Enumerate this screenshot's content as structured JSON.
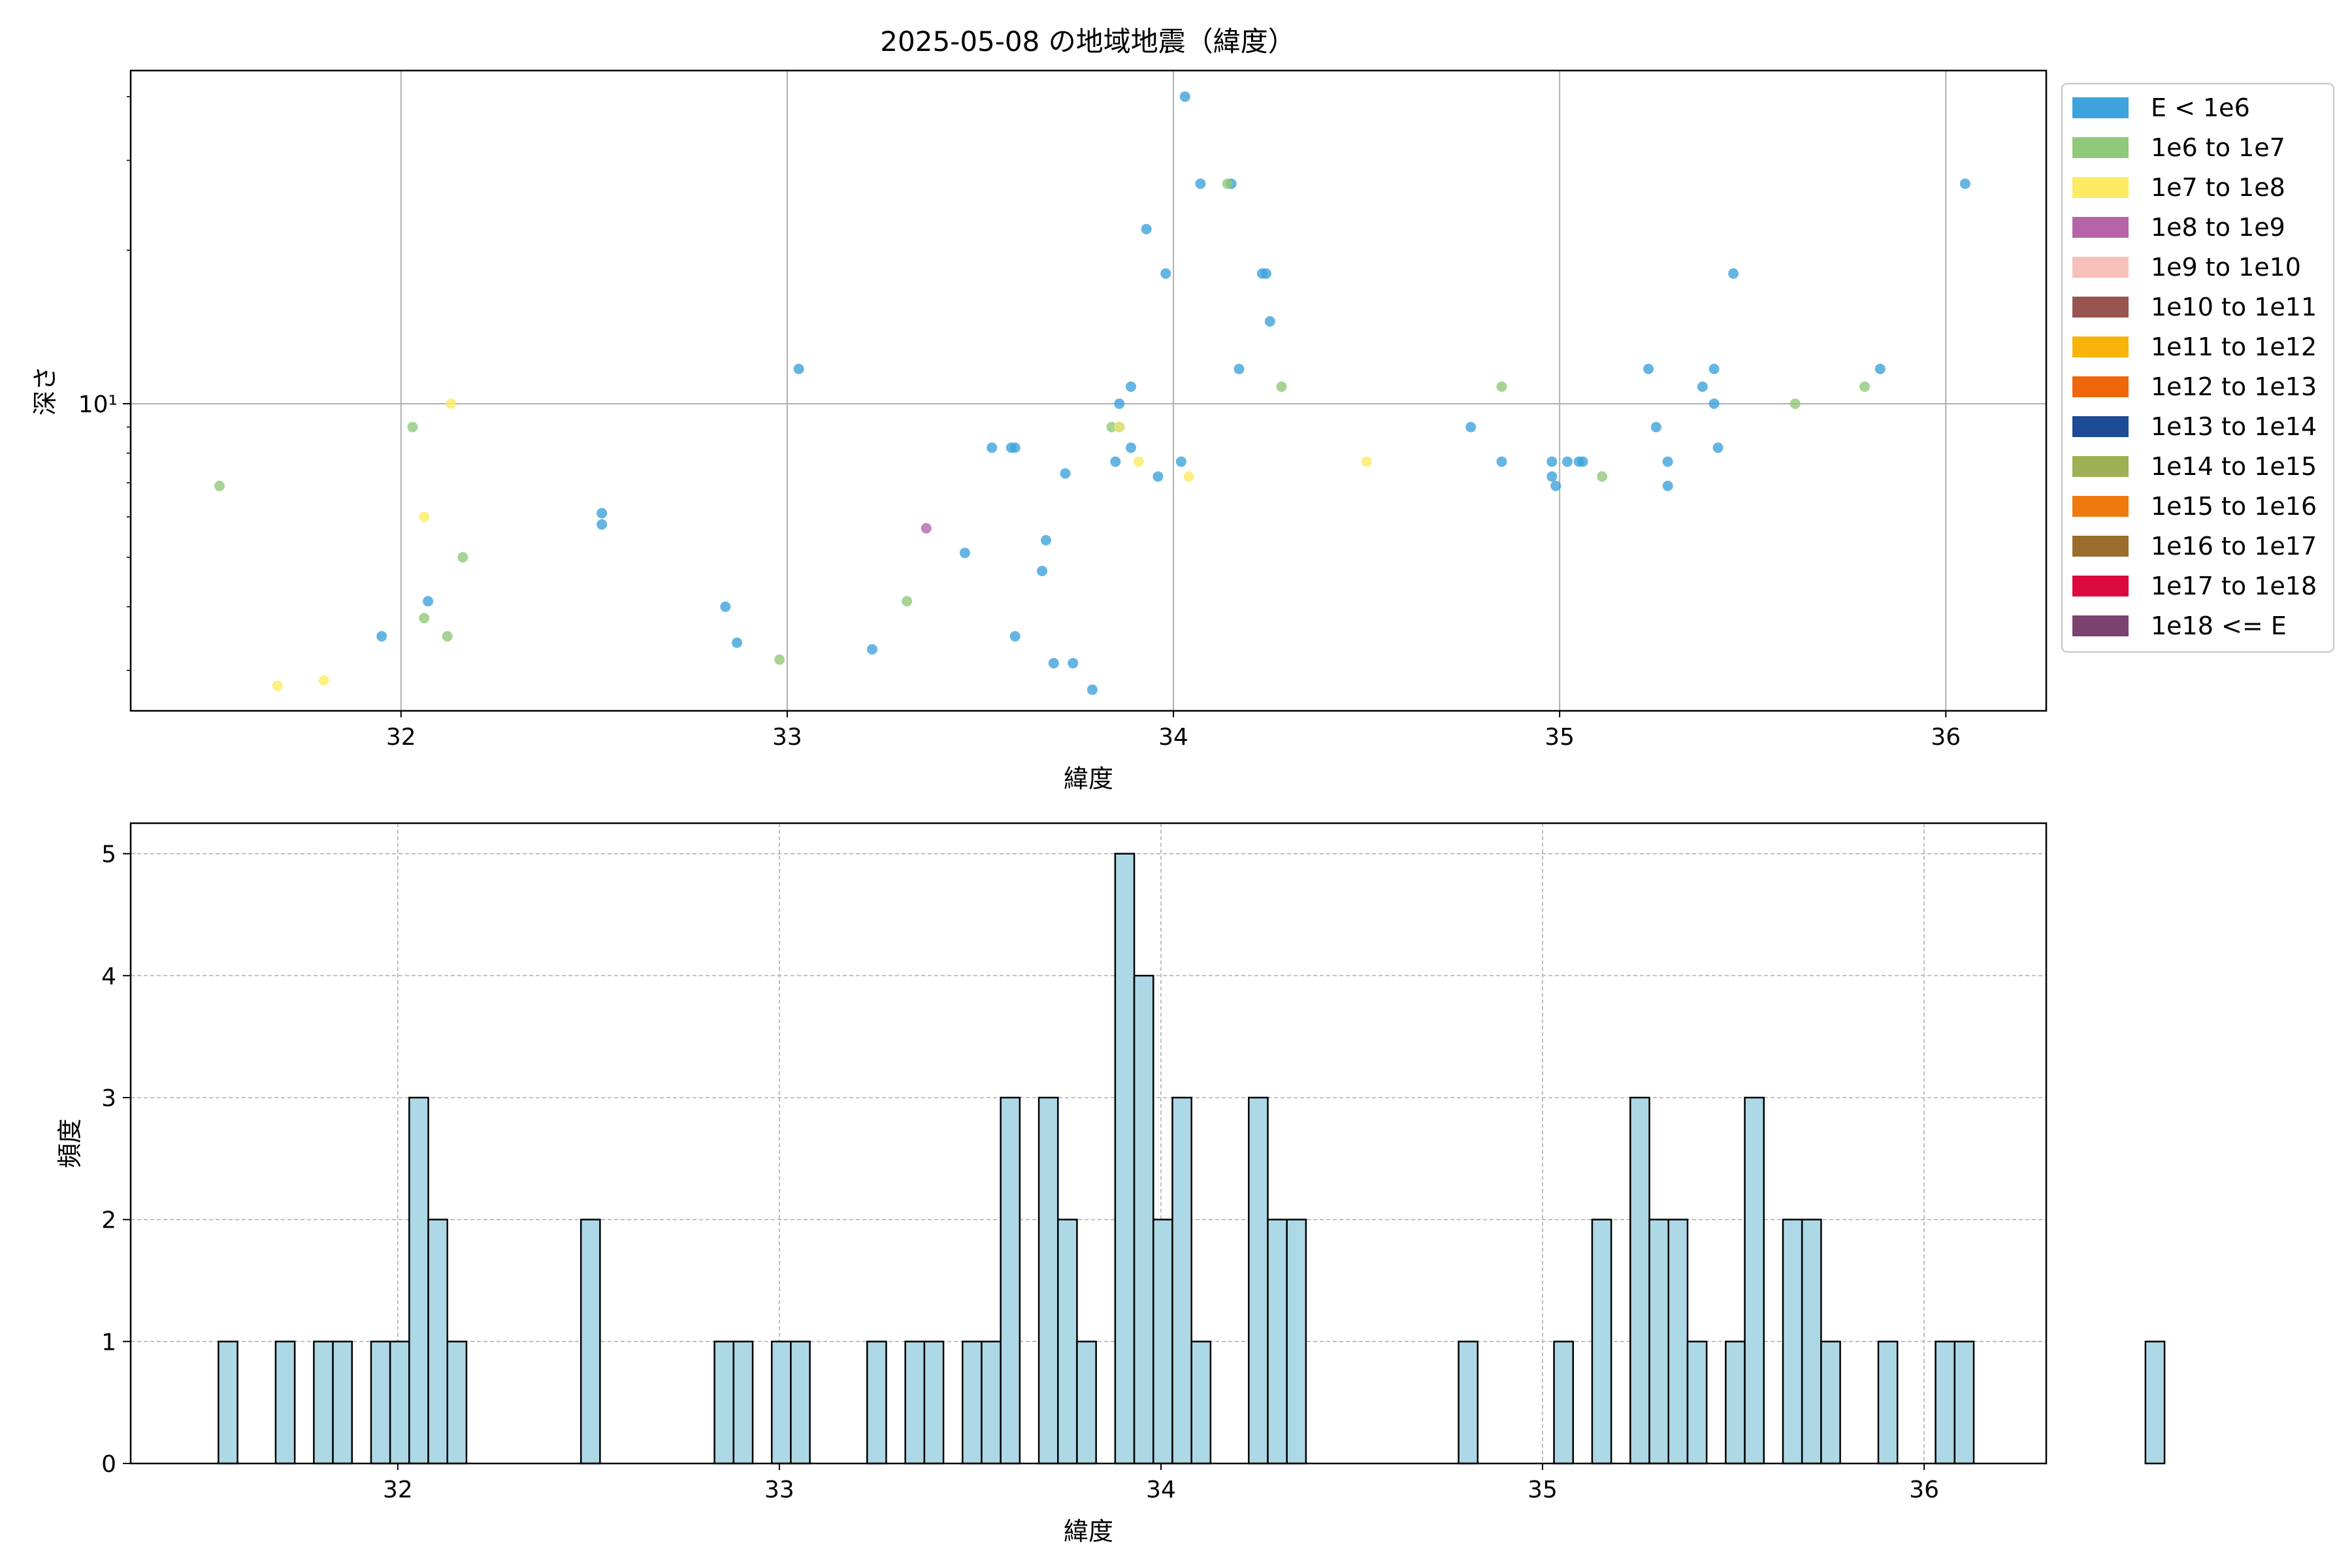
{
  "chart_data": [
    {
      "type": "scatter",
      "title": "2025-05-08 の地域地震（緯度）",
      "xlabel": "緯度",
      "ylabel": "深さ",
      "xlim": [
        31.3,
        36.26
      ],
      "ylim": [
        2.5,
        45
      ],
      "yscale": "log",
      "xticks": [
        32,
        33,
        34,
        35,
        36
      ],
      "xtick_labels": [
        "32",
        "33",
        "34",
        "35",
        "36"
      ],
      "yticks": [
        10
      ],
      "ytick_labels": [
        "10¹"
      ],
      "grid": true,
      "legend_position": "outside-right",
      "legend": [
        {
          "label": "E < 1e6",
          "color": "#3ea2dc"
        },
        {
          "label": "1e6 to 1e7",
          "color": "#91c97a"
        },
        {
          "label": "1e7 to 1e8",
          "color": "#fdeb63"
        },
        {
          "label": "1e8 to 1e9",
          "color": "#b565a7"
        },
        {
          "label": "1e9 to 1e10",
          "color": "#f7c0bb"
        },
        {
          "label": "1e10 to 1e11",
          "color": "#985550"
        },
        {
          "label": "1e11 to 1e12",
          "color": "#f7b307"
        },
        {
          "label": "1e12 to 1e13",
          "color": "#ee6609"
        },
        {
          "label": "1e13 to 1e14",
          "color": "#1e4b95"
        },
        {
          "label": "1e14 to 1e15",
          "color": "#9eb054"
        },
        {
          "label": "1e15 to 1e16",
          "color": "#ee7a0f"
        },
        {
          "label": "1e16 to 1e17",
          "color": "#9a6d2c"
        },
        {
          "label": "1e17 to 1e18",
          "color": "#dc0840"
        },
        {
          "label": "1e18 <= E",
          "color": "#7b4270"
        }
      ],
      "series": [
        {
          "name": "E < 1e6",
          "points": [
            [
              31.95,
              3.5
            ],
            [
              32.07,
              4.1
            ],
            [
              32.52,
              6.1
            ],
            [
              32.52,
              5.8
            ],
            [
              32.84,
              4.0
            ],
            [
              32.87,
              3.4
            ],
            [
              33.03,
              11.7
            ],
            [
              33.22,
              3.3
            ],
            [
              33.46,
              5.1
            ],
            [
              33.53,
              8.2
            ],
            [
              33.58,
              8.2
            ],
            [
              33.59,
              8.2
            ],
            [
              33.59,
              3.5
            ],
            [
              33.66,
              4.7
            ],
            [
              33.67,
              5.4
            ],
            [
              33.69,
              3.1
            ],
            [
              33.72,
              7.3
            ],
            [
              33.74,
              3.1
            ],
            [
              33.79,
              2.75
            ],
            [
              33.85,
              7.7
            ],
            [
              33.86,
              9.0
            ],
            [
              33.86,
              10.0
            ],
            [
              33.89,
              8.2
            ],
            [
              33.89,
              10.8
            ],
            [
              33.93,
              22.0
            ],
            [
              33.96,
              7.2
            ],
            [
              33.98,
              18.0
            ],
            [
              34.02,
              7.7
            ],
            [
              34.03,
              40.0
            ],
            [
              34.07,
              27.0
            ],
            [
              34.15,
              27.0
            ],
            [
              34.17,
              11.7
            ],
            [
              34.23,
              18.0
            ],
            [
              34.24,
              18.0
            ],
            [
              34.25,
              14.5
            ],
            [
              34.77,
              9.0
            ],
            [
              34.85,
              7.7
            ],
            [
              34.98,
              7.7
            ],
            [
              34.98,
              7.2
            ],
            [
              34.99,
              6.9
            ],
            [
              35.02,
              7.7
            ],
            [
              35.05,
              7.7
            ],
            [
              35.06,
              7.7
            ],
            [
              35.23,
              11.7
            ],
            [
              35.25,
              9.0
            ],
            [
              35.28,
              7.7
            ],
            [
              35.28,
              6.9
            ],
            [
              35.37,
              10.8
            ],
            [
              35.4,
              11.7
            ],
            [
              35.4,
              10.0
            ],
            [
              35.41,
              8.2
            ],
            [
              35.45,
              18.0
            ],
            [
              35.83,
              11.7
            ],
            [
              36.05,
              27.0
            ]
          ]
        },
        {
          "name": "1e6 to 1e7",
          "points": [
            [
              31.53,
              6.9
            ],
            [
              32.03,
              9.0
            ],
            [
              32.06,
              3.8
            ],
            [
              32.12,
              3.5
            ],
            [
              32.16,
              5.0
            ],
            [
              32.98,
              3.15
            ],
            [
              33.31,
              4.1
            ],
            [
              33.84,
              9.0
            ],
            [
              34.14,
              27.0
            ],
            [
              34.28,
              10.8
            ],
            [
              34.85,
              10.8
            ],
            [
              35.11,
              7.2
            ],
            [
              35.61,
              10.0
            ],
            [
              35.79,
              10.8
            ]
          ]
        },
        {
          "name": "1e7 to 1e8",
          "points": [
            [
              31.68,
              2.8
            ],
            [
              31.8,
              2.87
            ],
            [
              32.06,
              6.0
            ],
            [
              32.13,
              10.0
            ],
            [
              33.86,
              9.0
            ],
            [
              33.91,
              7.7
            ],
            [
              34.04,
              7.2
            ],
            [
              34.5,
              7.7
            ]
          ]
        },
        {
          "name": "1e8 to 1e9",
          "points": [
            [
              33.36,
              5.7
            ]
          ]
        }
      ]
    },
    {
      "type": "bar",
      "subtype": "histogram",
      "xlabel": "緯度",
      "ylabel": "頻度",
      "xlim": [
        31.3,
        36.32
      ],
      "ylim": [
        0,
        5.25
      ],
      "xticks": [
        32,
        33,
        34,
        35,
        36
      ],
      "xtick_labels": [
        "32",
        "33",
        "34",
        "35",
        "36"
      ],
      "yticks": [
        0,
        1,
        2,
        3,
        4,
        5
      ],
      "ytick_labels": [
        "0",
        "1",
        "2",
        "3",
        "4",
        "5"
      ],
      "grid": true,
      "bar_color": "#add8e6",
      "edge_color": "#000000",
      "bin_start": 31.53,
      "bin_width": 0.05,
      "values": [
        1,
        0,
        0,
        1,
        0,
        1,
        1,
        0,
        1,
        1,
        3,
        2,
        1,
        0,
        0,
        0,
        0,
        0,
        0,
        2,
        0,
        0,
        0,
        0,
        0,
        0,
        1,
        1,
        0,
        1,
        1,
        0,
        0,
        0,
        1,
        0,
        1,
        1,
        0,
        1,
        1,
        3,
        0,
        3,
        2,
        1,
        0,
        5,
        4,
        2,
        3,
        1,
        0,
        0,
        3,
        2,
        2,
        0,
        0,
        0,
        0,
        0,
        0,
        0,
        0,
        1,
        0,
        0,
        0,
        0,
        1,
        0,
        2,
        0,
        3,
        2,
        2,
        1,
        0,
        1,
        3,
        0,
        2,
        2,
        1,
        0,
        0,
        1,
        0,
        0,
        1,
        1,
        0,
        0,
        0,
        0,
        0,
        0,
        0,
        0,
        0,
        1
      ]
    }
  ]
}
